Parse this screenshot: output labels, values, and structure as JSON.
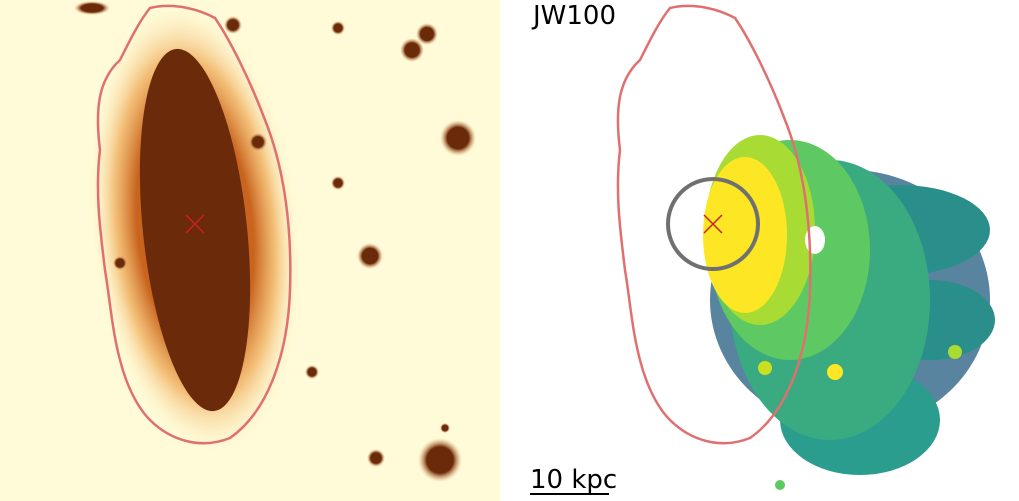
{
  "labels": {
    "name": "JW100",
    "scale": "10 kpc"
  }
}
